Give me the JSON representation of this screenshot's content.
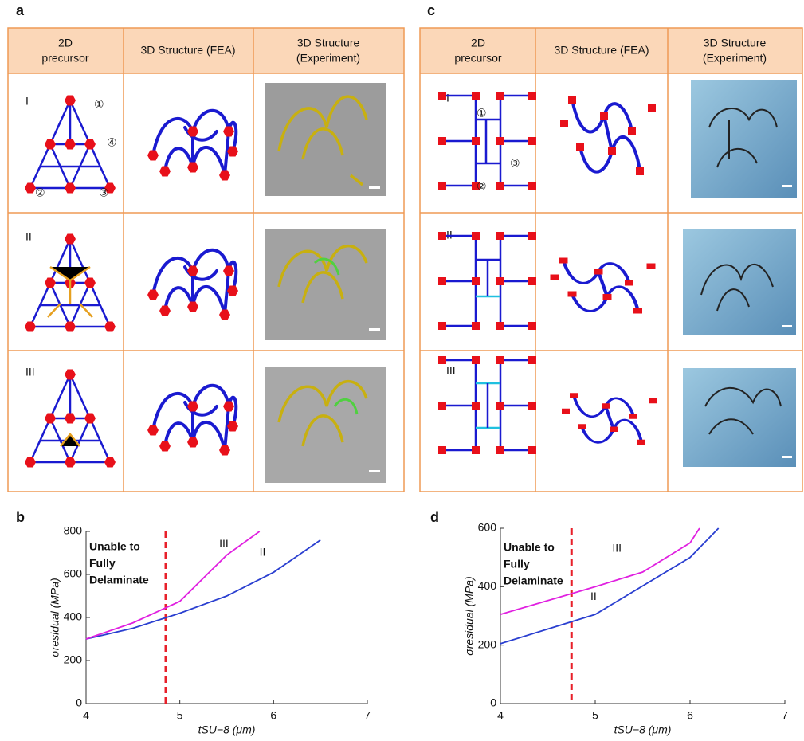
{
  "panel_labels": [
    "a",
    "b",
    "c",
    "d"
  ],
  "table_a": {
    "header": [
      [
        "2D",
        "precursor"
      ],
      [
        "3D Structure (FEA)"
      ],
      [
        "3D Structure",
        "(Experiment)"
      ]
    ],
    "rows": [
      "I",
      "II",
      "III"
    ],
    "callouts": [
      "①",
      "②",
      "③",
      "④"
    ]
  },
  "table_c": {
    "header": [
      [
        "2D",
        "precursor"
      ],
      [
        "3D Structure (FEA)"
      ],
      [
        "3D Structure",
        "(Experiment)"
      ]
    ],
    "rows": [
      "I",
      "II",
      "III"
    ],
    "callouts": [
      "①",
      "②",
      "③"
    ]
  },
  "chart_data": [
    {
      "type": "line",
      "xlabel": "tSU−8 (μm)",
      "ylabel": "σresidual (MPa)",
      "xlim": [
        4,
        7
      ],
      "xticks": [
        4,
        5,
        6,
        7
      ],
      "ylim": [
        0,
        800
      ],
      "yticks": [
        0,
        200,
        400,
        600,
        800
      ],
      "threshold_x": 4.85,
      "threshold_color": "#e8202a",
      "annotation": [
        "Unable to",
        "Fully",
        "Delaminate"
      ],
      "series": [
        {
          "name": "II",
          "color": "#2a3fd0",
          "x": [
            4,
            4.5,
            5,
            5.5,
            6,
            6.5
          ],
          "values": [
            300,
            350,
            420,
            500,
            610,
            760
          ]
        },
        {
          "name": "III",
          "color": "#e020e0",
          "x": [
            4,
            4.5,
            5,
            5.5,
            5.85
          ],
          "values": [
            300,
            375,
            475,
            690,
            800
          ]
        }
      ]
    },
    {
      "type": "line",
      "xlabel": "tSU−8 (μm)",
      "ylabel": "σresidual (MPa)",
      "xlim": [
        4,
        7
      ],
      "xticks": [
        4,
        5,
        6,
        7
      ],
      "ylim": [
        0,
        600
      ],
      "yticks": [
        0,
        200,
        400,
        600
      ],
      "threshold_x": 4.75,
      "threshold_color": "#e8202a",
      "annotation": [
        "Unable to",
        "Fully",
        "Delaminate"
      ],
      "series": [
        {
          "name": "II",
          "color": "#2a3fd0",
          "x": [
            4,
            5,
            6,
            6.3
          ],
          "values": [
            205,
            305,
            500,
            600
          ]
        },
        {
          "name": "III",
          "color": "#e020e0",
          "x": [
            4,
            5,
            5.5,
            6,
            6.1
          ],
          "values": [
            305,
            400,
            450,
            550,
            600
          ]
        }
      ]
    }
  ]
}
